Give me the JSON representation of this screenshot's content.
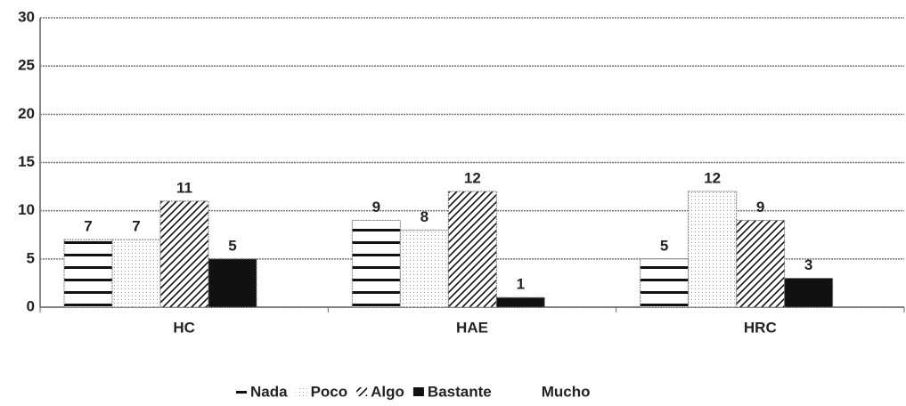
{
  "chart_data": {
    "type": "bar",
    "categories": [
      "HC",
      "HAE",
      "HRC"
    ],
    "series": [
      {
        "name": "Nada",
        "values": [
          7,
          9,
          5
        ]
      },
      {
        "name": "Poco",
        "values": [
          7,
          8,
          12
        ]
      },
      {
        "name": "Algo",
        "values": [
          11,
          12,
          9
        ]
      },
      {
        "name": "Bastante",
        "values": [
          5,
          1,
          3
        ]
      },
      {
        "name": "Mucho",
        "values": [
          null,
          null,
          null
        ]
      }
    ],
    "ylim": [
      0,
      30
    ],
    "yticks": [
      0,
      5,
      10,
      15,
      20,
      25,
      30
    ],
    "grid": true,
    "legend": "bottom"
  }
}
